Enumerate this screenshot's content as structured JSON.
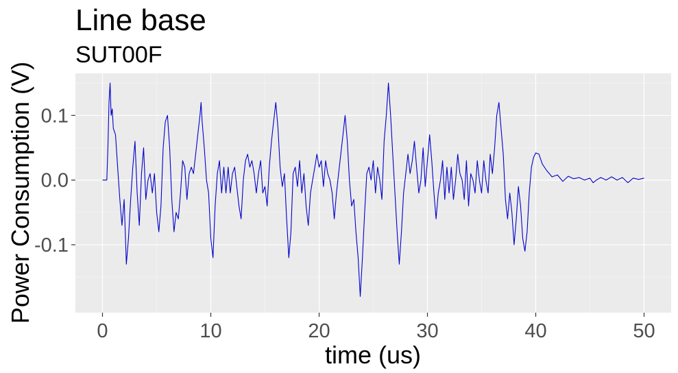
{
  "chart_data": {
    "type": "line",
    "title": "Line base",
    "subtitle": "SUT00F",
    "xlabel": "time (us)",
    "ylabel": "Power Consumption (V)",
    "xlim": [
      -2.5,
      52.5
    ],
    "ylim": [
      -0.205,
      0.165
    ],
    "x_ticks": [
      0,
      10,
      20,
      30,
      40,
      50
    ],
    "x_tick_labels": [
      "0",
      "10",
      "20",
      "30",
      "40",
      "50"
    ],
    "y_ticks": [
      -0.1,
      0.0,
      0.1
    ],
    "y_tick_labels": [
      "-0.1",
      "0.0",
      "0.1"
    ],
    "grid": true,
    "background": "#ebebeb",
    "series": [
      {
        "color": "#0000cc",
        "points": [
          [
            0.0,
            0.0
          ],
          [
            0.4,
            0.0
          ],
          [
            0.5,
            0.05
          ],
          [
            0.6,
            0.12
          ],
          [
            0.7,
            0.15
          ],
          [
            0.8,
            0.1
          ],
          [
            0.9,
            0.11
          ],
          [
            1.0,
            0.08
          ],
          [
            1.2,
            0.07
          ],
          [
            1.4,
            0.02
          ],
          [
            1.6,
            -0.03
          ],
          [
            1.8,
            -0.07
          ],
          [
            2.0,
            -0.03
          ],
          [
            2.2,
            -0.13
          ],
          [
            2.4,
            -0.09
          ],
          [
            2.6,
            -0.03
          ],
          [
            2.8,
            0.02
          ],
          [
            3.0,
            0.06
          ],
          [
            3.2,
            -0.02
          ],
          [
            3.4,
            -0.07
          ],
          [
            3.6,
            0.01
          ],
          [
            3.8,
            0.05
          ],
          [
            4.0,
            -0.03
          ],
          [
            4.2,
            0.0
          ],
          [
            4.4,
            0.01
          ],
          [
            4.6,
            -0.02
          ],
          [
            4.8,
            0.01
          ],
          [
            5.0,
            -0.05
          ],
          [
            5.2,
            -0.08
          ],
          [
            5.4,
            -0.04
          ],
          [
            5.6,
            0.05
          ],
          [
            5.8,
            0.09
          ],
          [
            6.0,
            0.1
          ],
          [
            6.2,
            0.05
          ],
          [
            6.4,
            -0.03
          ],
          [
            6.6,
            -0.08
          ],
          [
            6.8,
            -0.05
          ],
          [
            7.0,
            -0.06
          ],
          [
            7.2,
            -0.02
          ],
          [
            7.4,
            0.03
          ],
          [
            7.6,
            0.02
          ],
          [
            7.8,
            -0.03
          ],
          [
            8.0,
            0.01
          ],
          [
            8.2,
            0.02
          ],
          [
            8.4,
            0.01
          ],
          [
            8.6,
            0.04
          ],
          [
            8.8,
            0.07
          ],
          [
            9.0,
            0.1
          ],
          [
            9.1,
            0.12
          ],
          [
            9.2,
            0.09
          ],
          [
            9.4,
            0.05
          ],
          [
            9.6,
            0.0
          ],
          [
            9.8,
            -0.02
          ],
          [
            10.0,
            -0.09
          ],
          [
            10.2,
            -0.12
          ],
          [
            10.4,
            -0.04
          ],
          [
            10.6,
            0.01
          ],
          [
            10.8,
            0.03
          ],
          [
            11.0,
            -0.02
          ],
          [
            11.2,
            0.02
          ],
          [
            11.4,
            -0.02
          ],
          [
            11.6,
            0.02
          ],
          [
            11.8,
            -0.02
          ],
          [
            12.0,
            0.01
          ],
          [
            12.2,
            0.02
          ],
          [
            12.4,
            -0.01
          ],
          [
            12.6,
            -0.04
          ],
          [
            12.8,
            -0.06
          ],
          [
            13.0,
            0.0
          ],
          [
            13.2,
            0.03
          ],
          [
            13.4,
            0.04
          ],
          [
            13.6,
            0.02
          ],
          [
            13.8,
            0.03
          ],
          [
            14.0,
            0.01
          ],
          [
            14.2,
            -0.02
          ],
          [
            14.4,
            0.01
          ],
          [
            14.6,
            0.03
          ],
          [
            14.8,
            -0.02
          ],
          [
            15.0,
            -0.01
          ],
          [
            15.2,
            -0.04
          ],
          [
            15.4,
            0.02
          ],
          [
            15.6,
            0.06
          ],
          [
            15.8,
            0.09
          ],
          [
            16.0,
            0.12
          ],
          [
            16.2,
            0.08
          ],
          [
            16.4,
            0.02
          ],
          [
            16.6,
            -0.01
          ],
          [
            16.8,
            0.01
          ],
          [
            17.0,
            -0.06
          ],
          [
            17.2,
            -0.12
          ],
          [
            17.4,
            -0.08
          ],
          [
            17.6,
            0.01
          ],
          [
            17.8,
            0.02
          ],
          [
            18.0,
            -0.01
          ],
          [
            18.2,
            0.03
          ],
          [
            18.4,
            -0.02
          ],
          [
            18.6,
            0.01
          ],
          [
            18.8,
            -0.04
          ],
          [
            19.0,
            -0.07
          ],
          [
            19.2,
            -0.02
          ],
          [
            19.4,
            0.0
          ],
          [
            19.6,
            0.02
          ],
          [
            19.8,
            0.04
          ],
          [
            20.0,
            0.02
          ],
          [
            20.2,
            0.03
          ],
          [
            20.4,
            -0.01
          ],
          [
            20.6,
            0.03
          ],
          [
            20.8,
            0.01
          ],
          [
            21.0,
            0.0
          ],
          [
            21.2,
            -0.02
          ],
          [
            21.4,
            -0.06
          ],
          [
            21.6,
            -0.02
          ],
          [
            21.8,
            0.01
          ],
          [
            22.0,
            0.04
          ],
          [
            22.2,
            0.07
          ],
          [
            22.4,
            0.1
          ],
          [
            22.6,
            0.06
          ],
          [
            22.8,
            0.0
          ],
          [
            23.0,
            -0.04
          ],
          [
            23.2,
            -0.03
          ],
          [
            23.4,
            -0.08
          ],
          [
            23.6,
            -0.12
          ],
          [
            23.8,
            -0.18
          ],
          [
            24.0,
            -0.12
          ],
          [
            24.2,
            -0.05
          ],
          [
            24.4,
            0.01
          ],
          [
            24.6,
            0.02
          ],
          [
            24.8,
            0.0
          ],
          [
            25.0,
            0.03
          ],
          [
            25.2,
            -0.02
          ],
          [
            25.4,
            0.02
          ],
          [
            25.6,
            0.0
          ],
          [
            25.8,
            -0.03
          ],
          [
            26.0,
            0.06
          ],
          [
            26.2,
            0.1
          ],
          [
            26.4,
            0.15
          ],
          [
            26.6,
            0.1
          ],
          [
            26.8,
            0.04
          ],
          [
            27.0,
            -0.02
          ],
          [
            27.2,
            -0.08
          ],
          [
            27.4,
            -0.13
          ],
          [
            27.6,
            -0.08
          ],
          [
            27.8,
            -0.02
          ],
          [
            28.0,
            0.01
          ],
          [
            28.2,
            0.04
          ],
          [
            28.4,
            0.01
          ],
          [
            28.6,
            0.03
          ],
          [
            28.8,
            0.06
          ],
          [
            29.0,
            0.02
          ],
          [
            29.2,
            -0.02
          ],
          [
            29.4,
            0.0
          ],
          [
            29.6,
            0.05
          ],
          [
            29.8,
            -0.01
          ],
          [
            30.0,
            0.03
          ],
          [
            30.2,
            0.07
          ],
          [
            30.4,
            0.03
          ],
          [
            30.6,
            -0.02
          ],
          [
            30.8,
            -0.06
          ],
          [
            31.0,
            -0.02
          ],
          [
            31.2,
            0.0
          ],
          [
            31.4,
            0.03
          ],
          [
            31.6,
            -0.03
          ],
          [
            31.8,
            0.02
          ],
          [
            32.0,
            -0.02
          ],
          [
            32.2,
            0.02
          ],
          [
            32.4,
            -0.03
          ],
          [
            32.6,
            0.0
          ],
          [
            32.8,
            0.04
          ],
          [
            33.0,
            0.01
          ],
          [
            33.2,
            0.0
          ],
          [
            33.4,
            -0.03
          ],
          [
            33.6,
            0.03
          ],
          [
            33.8,
            -0.04
          ],
          [
            34.0,
            0.01
          ],
          [
            34.2,
            0.0
          ],
          [
            34.4,
            -0.02
          ],
          [
            34.6,
            0.03
          ],
          [
            34.8,
            0.0
          ],
          [
            35.0,
            -0.02
          ],
          [
            35.2,
            0.03
          ],
          [
            35.4,
            0.0
          ],
          [
            35.6,
            -0.02
          ],
          [
            35.8,
            0.04
          ],
          [
            36.0,
            0.01
          ],
          [
            36.2,
            0.05
          ],
          [
            36.4,
            0.1
          ],
          [
            36.6,
            0.12
          ],
          [
            36.8,
            0.08
          ],
          [
            37.0,
            0.04
          ],
          [
            37.2,
            -0.03
          ],
          [
            37.4,
            -0.06
          ],
          [
            37.6,
            -0.02
          ],
          [
            37.8,
            -0.05
          ],
          [
            38.0,
            -0.1
          ],
          [
            38.2,
            -0.06
          ],
          [
            38.4,
            -0.01
          ],
          [
            38.6,
            -0.04
          ],
          [
            38.8,
            -0.09
          ],
          [
            39.0,
            -0.11
          ],
          [
            39.2,
            -0.08
          ],
          [
            39.4,
            -0.02
          ],
          [
            39.6,
            0.02
          ],
          [
            39.8,
            0.035
          ],
          [
            40.0,
            0.042
          ],
          [
            40.3,
            0.04
          ],
          [
            40.6,
            0.025
          ],
          [
            41.0,
            0.015
          ],
          [
            41.5,
            0.005
          ],
          [
            42.0,
            0.008
          ],
          [
            42.5,
            -0.002
          ],
          [
            43.0,
            0.006
          ],
          [
            43.5,
            0.002
          ],
          [
            44.0,
            0.004
          ],
          [
            44.5,
            0.0
          ],
          [
            45.0,
            0.003
          ],
          [
            45.3,
            -0.004
          ],
          [
            45.6,
            0.0
          ],
          [
            46.0,
            0.004
          ],
          [
            46.5,
            0.0
          ],
          [
            47.0,
            0.005
          ],
          [
            47.5,
            0.0
          ],
          [
            48.0,
            0.004
          ],
          [
            48.5,
            -0.004
          ],
          [
            49.0,
            0.003
          ],
          [
            49.5,
            0.001
          ],
          [
            50.0,
            0.003
          ]
        ]
      }
    ]
  }
}
